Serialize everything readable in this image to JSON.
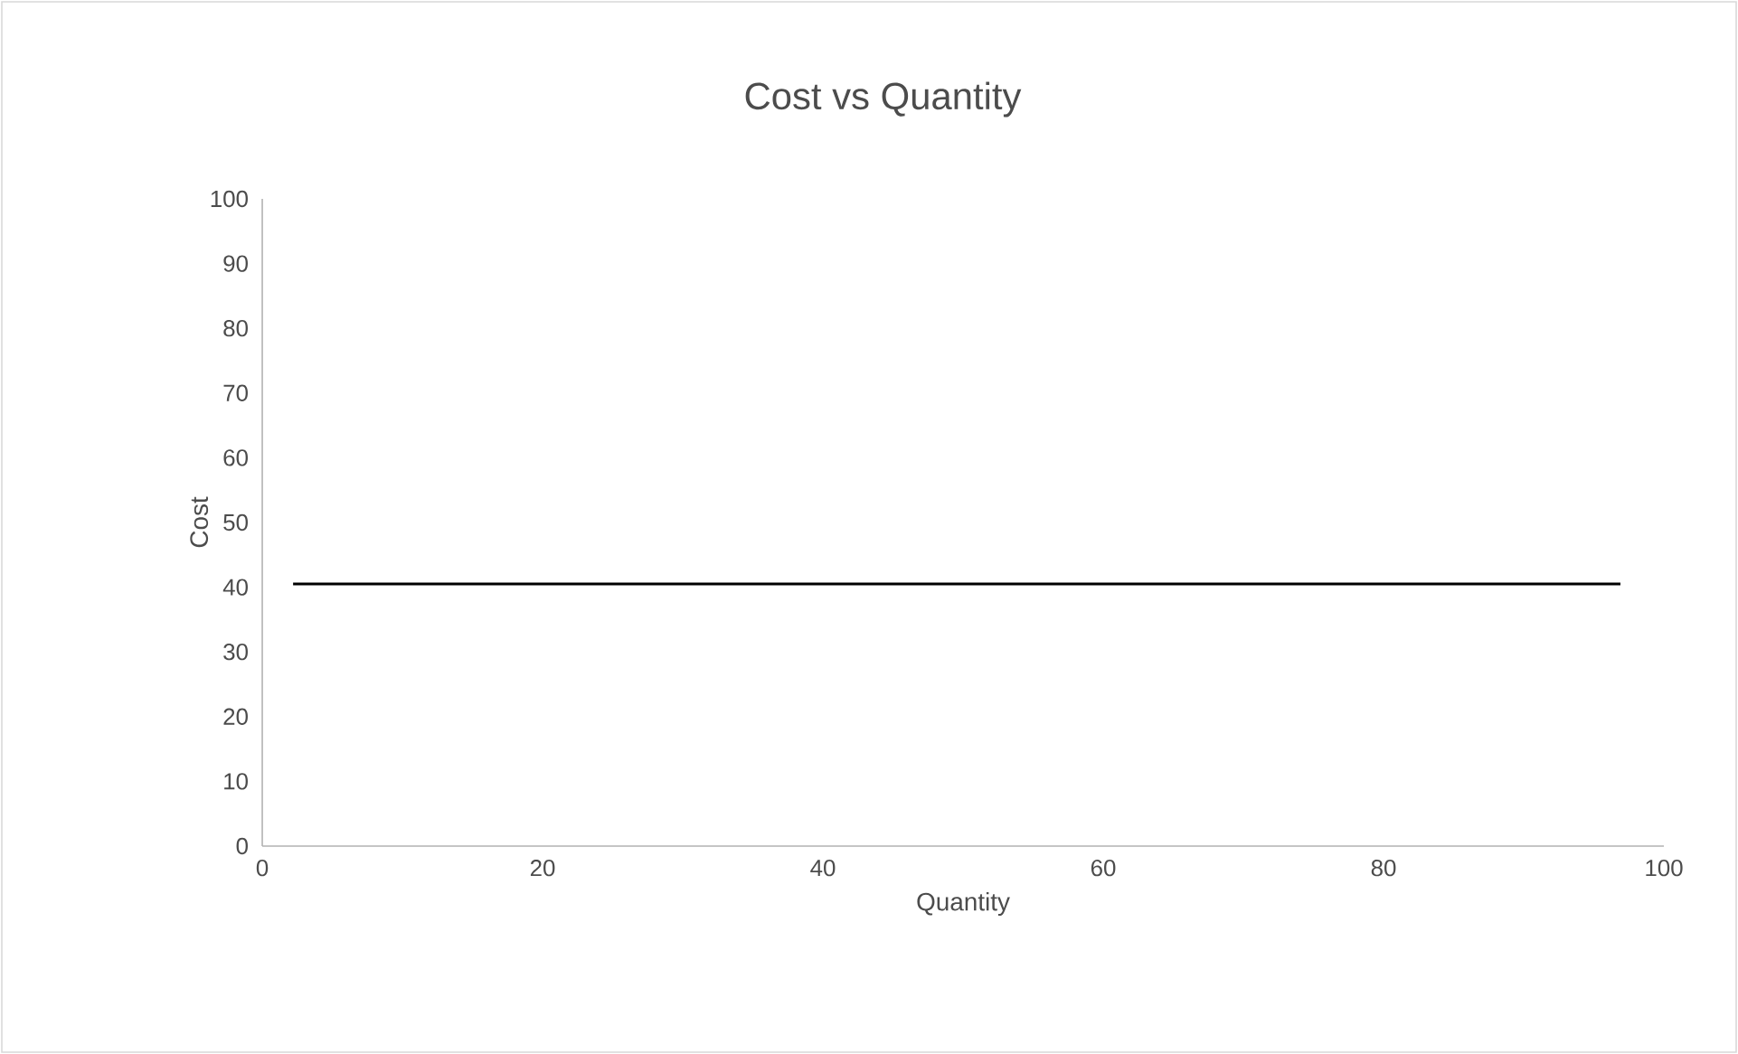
{
  "chart_data": {
    "type": "line",
    "title": "Cost vs Quantity",
    "xlabel": "Quantity",
    "ylabel": "Cost",
    "x": [
      2.2,
      96.9
    ],
    "series": [
      {
        "color": "#000000",
        "values": [
          40.5,
          40.5
        ]
      }
    ],
    "xlim": [
      0,
      100
    ],
    "ylim": [
      0,
      100
    ],
    "xticks": [
      0,
      20,
      40,
      60,
      80,
      100
    ],
    "yticks": [
      0,
      10,
      20,
      30,
      40,
      50,
      60,
      70,
      80,
      90,
      100
    ],
    "grid": false,
    "marker": "none",
    "line_style": "solid"
  }
}
